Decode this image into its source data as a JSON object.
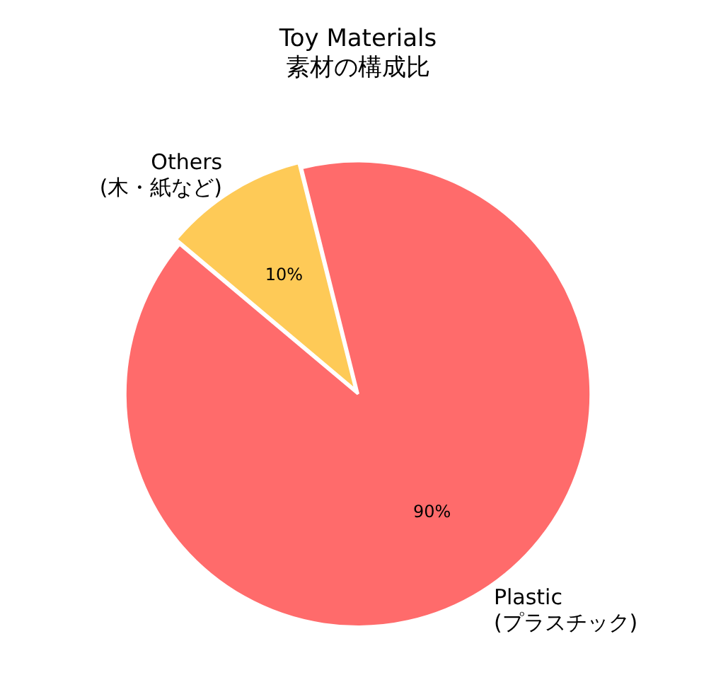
{
  "chart_data": {
    "type": "pie",
    "title": "Toy Materials",
    "subtitle": "素材の構成比",
    "categories": [
      "Plastic\n(プラスチック)",
      "Others\n(木・紙など)"
    ],
    "values": [
      90,
      10
    ],
    "colors": [
      "#ff6b6b",
      "#feca57"
    ],
    "value_labels": [
      "90%",
      "10%"
    ],
    "legend": false
  }
}
